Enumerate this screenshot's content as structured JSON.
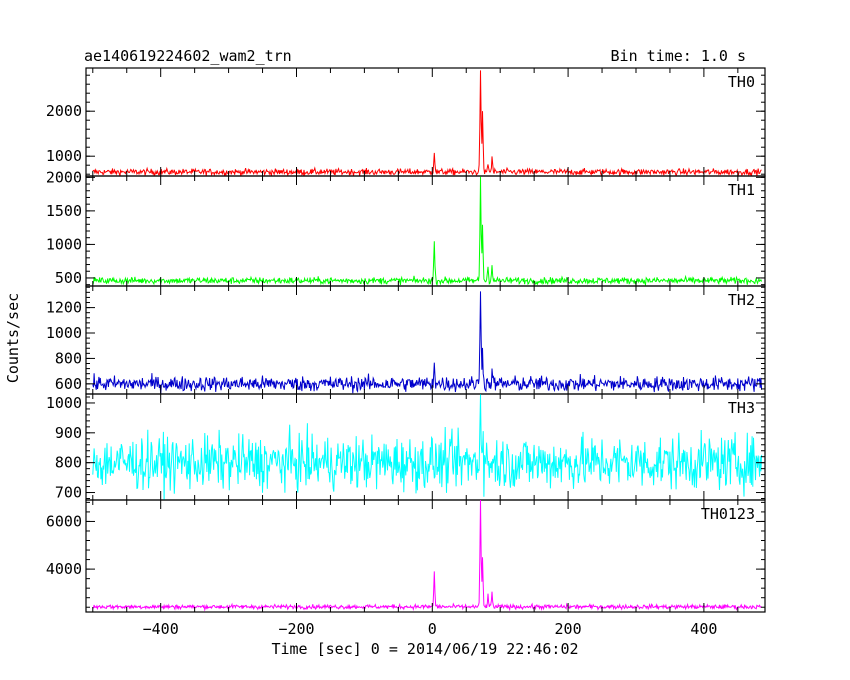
{
  "header": {
    "title": "ae140619224602_wam2_trn",
    "bin_time": "Bin time: 1.0 s"
  },
  "chart_data": {
    "type": "line",
    "xlabel": "Time [sec] 0 = 2014/06/19 22:46:02",
    "ylabel": "Counts/sec",
    "xlim": [
      -510,
      490
    ],
    "xticks": [
      -400,
      -200,
      0,
      200,
      400
    ],
    "xtick_labels": [
      "−400",
      "−200",
      "0",
      "200",
      "400"
    ],
    "grid": false,
    "panels": [
      {
        "name": "TH0",
        "color": "#ff0000",
        "ylim": [
          560,
          2960
        ],
        "yticks": [
          1000,
          2000
        ],
        "yticks_minor": [
          2000
        ],
        "baseline": 650,
        "noise": 35,
        "peaks": [
          {
            "t": 3,
            "v": 1100
          },
          {
            "t": 71,
            "v": 2950
          },
          {
            "t": 74,
            "v": 1950
          },
          {
            "t": 82,
            "v": 850
          },
          {
            "t": 88,
            "v": 950
          }
        ]
      },
      {
        "name": "TH1",
        "color": "#00ff00",
        "ylim": [
          380,
          2020
        ],
        "yticks": [
          500,
          1000,
          1500,
          2000
        ],
        "baseline": 460,
        "noise": 25,
        "peaks": [
          {
            "t": 3,
            "v": 1030
          },
          {
            "t": 71,
            "v": 2000
          },
          {
            "t": 74,
            "v": 1300
          },
          {
            "t": 82,
            "v": 680
          },
          {
            "t": 88,
            "v": 700
          }
        ]
      },
      {
        "name": "TH2",
        "color": "#0000cc",
        "ylim": [
          520,
          1370
        ],
        "yticks": [
          600,
          800,
          1000,
          1200
        ],
        "baseline": 600,
        "noise": 30,
        "peaks": [
          {
            "t": 3,
            "v": 790
          },
          {
            "t": 71,
            "v": 1360
          },
          {
            "t": 74,
            "v": 900
          },
          {
            "t": 88,
            "v": 700
          }
        ]
      },
      {
        "name": "TH3",
        "color": "#00ffff",
        "ylim": [
          675,
          1030
        ],
        "yticks": [
          700,
          800,
          900,
          1000
        ],
        "baseline": 800,
        "noise": 45,
        "peaks": [
          {
            "t": 71,
            "v": 1030
          },
          {
            "t": 74,
            "v": 920
          }
        ]
      },
      {
        "name": "TH0123",
        "color": "#ff00ff",
        "ylim": [
          2200,
          6900
        ],
        "yticks": [
          4000,
          6000
        ],
        "baseline": 2420,
        "noise": 45,
        "peaks": [
          {
            "t": 3,
            "v": 3850
          },
          {
            "t": 71,
            "v": 6850
          },
          {
            "t": 74,
            "v": 4500
          },
          {
            "t": 82,
            "v": 2900
          },
          {
            "t": 88,
            "v": 3000
          }
        ]
      }
    ]
  }
}
